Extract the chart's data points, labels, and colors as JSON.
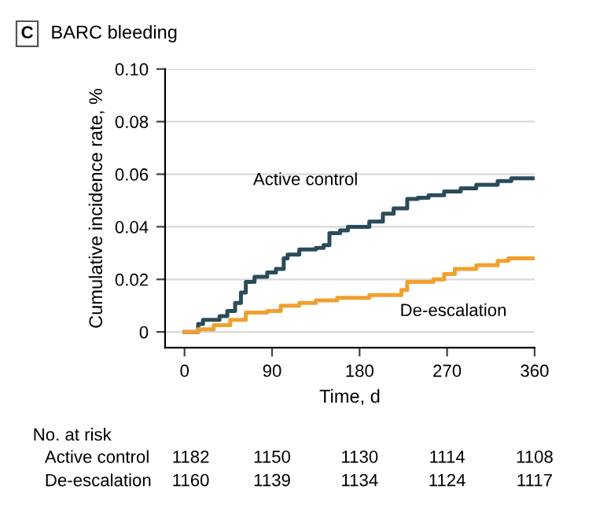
{
  "chart_data": {
    "type": "step",
    "title": "BARC bleeding",
    "xlabel": "Time, d",
    "ylabel": "Cumulative incidence rate, %",
    "xlim": [
      -20,
      360
    ],
    "xticks": [
      0,
      90,
      180,
      270,
      360
    ],
    "ylim": [
      -0.006,
      0.1
    ],
    "yticks": [
      0,
      0.02,
      0.04,
      0.06,
      0.08,
      {
        "value": 0.1,
        "label": "0.10"
      }
    ],
    "grid": "y",
    "series": [
      {
        "name": "Active control",
        "color": "#2a4b5a",
        "x": [
          0,
          11,
          14,
          19,
          36,
          44,
          52,
          58,
          63,
          72,
          85,
          94,
          102,
          106,
          118,
          135,
          143,
          149,
          160,
          168,
          182,
          190,
          204,
          215,
          229,
          240,
          251,
          267,
          284,
          300,
          322,
          336,
          360
        ],
        "values": [
          0,
          0,
          0.003,
          0.0046,
          0.006,
          0.008,
          0.011,
          0.015,
          0.019,
          0.021,
          0.0226,
          0.024,
          0.028,
          0.0294,
          0.0314,
          0.032,
          0.033,
          0.0376,
          0.0386,
          0.04,
          0.04,
          0.042,
          0.045,
          0.047,
          0.0506,
          0.051,
          0.052,
          0.0534,
          0.0546,
          0.056,
          0.0574,
          0.0584,
          0.0584
        ]
      },
      {
        "name": "De-escalation",
        "color": "#f0a030",
        "x": [
          0,
          14,
          30,
          47,
          63,
          85,
          99,
          118,
          135,
          157,
          190,
          223,
          229,
          256,
          267,
          278,
          300,
          322,
          333,
          360
        ],
        "values": [
          0,
          0.001,
          0.0026,
          0.0046,
          0.0074,
          0.008,
          0.01,
          0.011,
          0.012,
          0.013,
          0.014,
          0.016,
          0.019,
          0.02,
          0.022,
          0.024,
          0.0254,
          0.027,
          0.028,
          0.028
        ]
      }
    ],
    "annotations": [
      "C",
      "No. at risk",
      "Active control",
      "1182",
      "1150",
      "1130",
      "1114",
      "1108",
      "De-escalation",
      "1160",
      "1139",
      "1134",
      "1124",
      "1117"
    ]
  }
}
